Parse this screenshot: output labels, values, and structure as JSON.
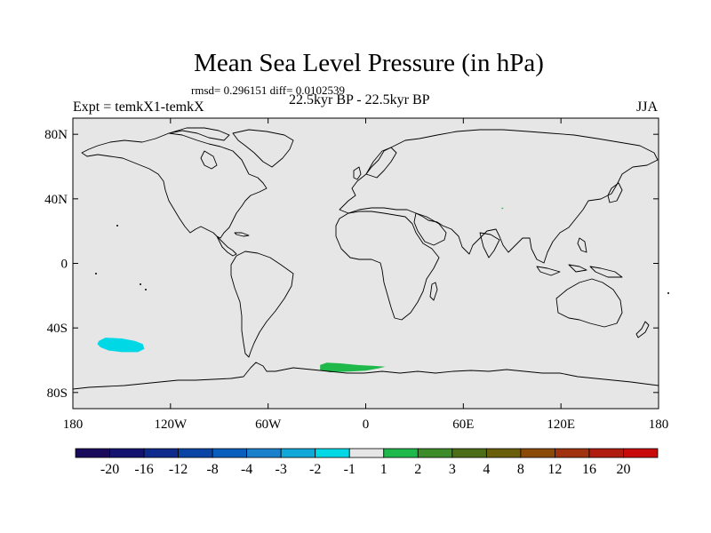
{
  "title": "Mean Sea Level Pressure (in hPa)",
  "stats_line": "rmsd= 0.296151  diff= 0.0102539",
  "period_line": "22.5kyr BP - 22.5kyr BP",
  "experiment_label": "Expt = temkX1-temkX",
  "season_label": "JJA",
  "colors": {
    "ocean_land_background": "#e6e6e6",
    "coastline": "#000000",
    "neg_anomaly_patch": "#00e0e6",
    "pos_anomaly_patch": "#1fb84a",
    "colorbar": [
      "#1a0a5c",
      "#141470",
      "#0e2a8c",
      "#0a45a6",
      "#0a5ebe",
      "#1a80cc",
      "#10a8d8",
      "#00d8e6",
      "#e6e6e6",
      "#1fb84a",
      "#3c8c2a",
      "#4d6e18",
      "#6b5e0a",
      "#8a4a08",
      "#a03210",
      "#b01c10",
      "#c80a0a"
    ]
  },
  "map": {
    "projection": "cylindrical-equidistant",
    "lon_range": [
      -180,
      180
    ],
    "lat_range": [
      -90,
      90
    ],
    "lon_ticks": [
      {
        "value": -180,
        "label": "180"
      },
      {
        "value": -120,
        "label": "120W"
      },
      {
        "value": -60,
        "label": "60W"
      },
      {
        "value": 0,
        "label": "0"
      },
      {
        "value": 60,
        "label": "60E"
      },
      {
        "value": 120,
        "label": "120E"
      },
      {
        "value": 180,
        "label": "180"
      }
    ],
    "lat_ticks": [
      {
        "value": 80,
        "label": "80N"
      },
      {
        "value": 40,
        "label": "40N"
      },
      {
        "value": 0,
        "label": "0"
      },
      {
        "value": -40,
        "label": "40S"
      },
      {
        "value": -80,
        "label": "80S"
      }
    ],
    "anomaly_regions": [
      {
        "name": "south-pacific-negative-anomaly",
        "category": "-2 to -1",
        "color_index": 7,
        "outline_lonlat": [
          [
            -164,
            -48
          ],
          [
            -160,
            -46
          ],
          [
            -150,
            -46.5
          ],
          [
            -142,
            -48
          ],
          [
            -137,
            -50
          ],
          [
            -136,
            -53
          ],
          [
            -140,
            -55
          ],
          [
            -150,
            -55
          ],
          [
            -158,
            -54
          ],
          [
            -163,
            -52
          ],
          [
            -165,
            -50
          ]
        ]
      },
      {
        "name": "southern-ocean-positive-anomaly",
        "category": "1 to 2",
        "color_index": 9,
        "outline_lonlat": [
          [
            -28,
            -63
          ],
          [
            -24,
            -61.5
          ],
          [
            -15,
            -62
          ],
          [
            -5,
            -63
          ],
          [
            5,
            -63.5
          ],
          [
            12,
            -64
          ],
          [
            8,
            -65
          ],
          [
            0,
            -66.5
          ],
          [
            -10,
            -67
          ],
          [
            -22,
            -67.5
          ],
          [
            -28,
            -66
          ]
        ]
      },
      {
        "name": "tibet-positive-anomaly",
        "category": "1 to 2",
        "color_index": 9,
        "outline_lonlat": [
          [
            83.5,
            34.5
          ],
          [
            84.5,
            34.5
          ],
          [
            84.5,
            33.8
          ],
          [
            83.5,
            33.8
          ]
        ]
      }
    ]
  },
  "colorbar": {
    "labels": [
      "-20",
      "-16",
      "-12",
      "-8",
      "-4",
      "-3",
      "-2",
      "-1",
      "1",
      "2",
      "3",
      "4",
      "8",
      "12",
      "16",
      "20"
    ]
  }
}
